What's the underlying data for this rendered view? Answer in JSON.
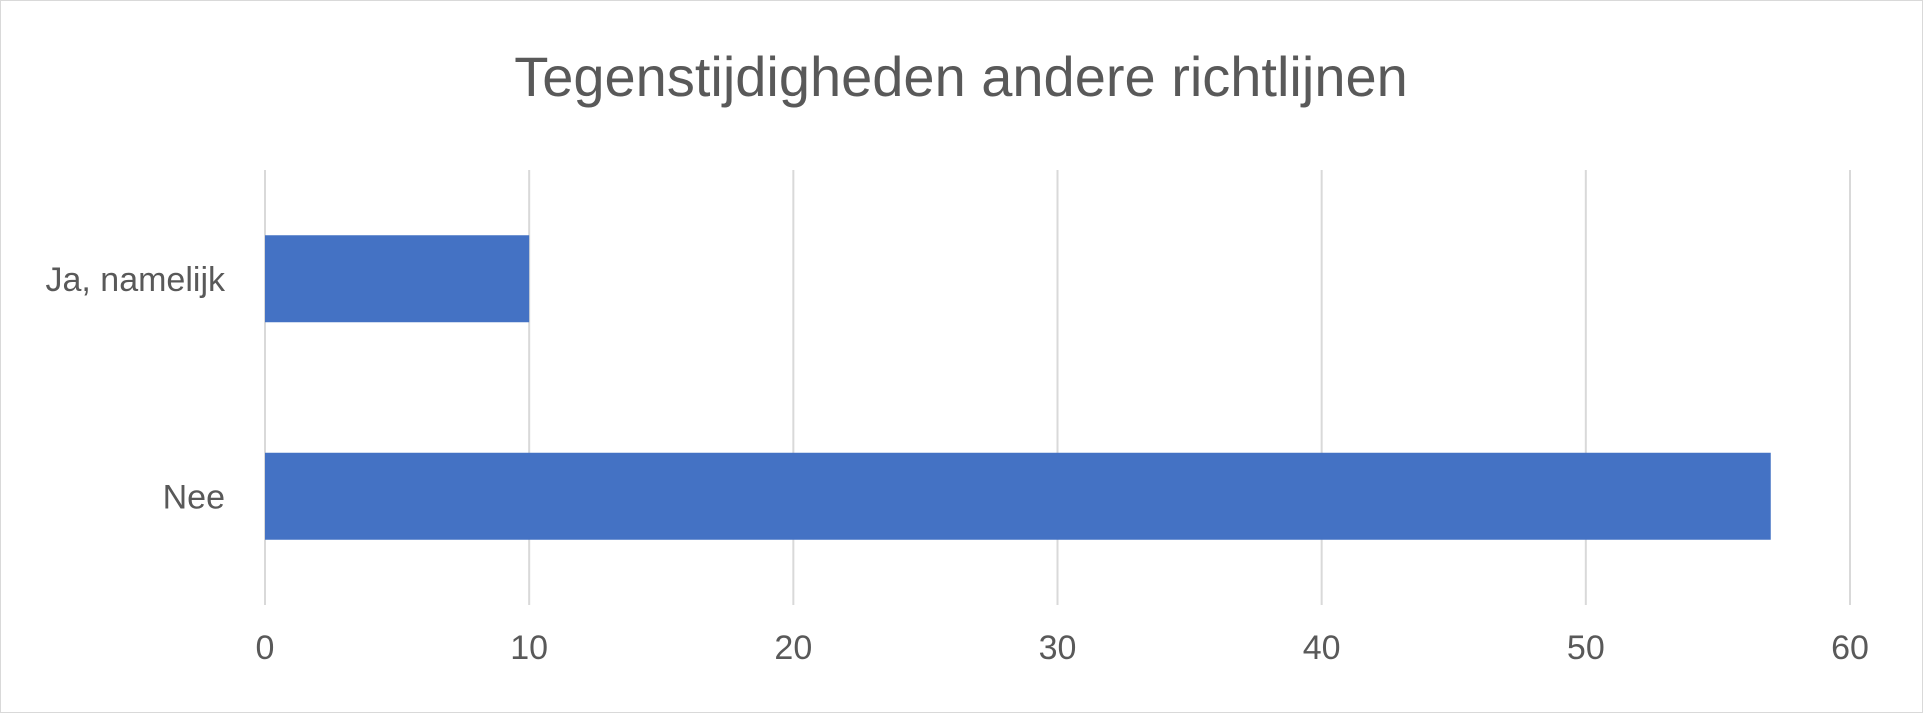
{
  "chart_data": {
    "type": "bar",
    "orientation": "horizontal",
    "title": "Tegenstijdigheden andere richtlijnen",
    "categories": [
      "Ja, namelijk",
      "Nee"
    ],
    "series": [
      {
        "values": [
          10,
          57
        ]
      }
    ],
    "xlim": [
      0,
      60
    ],
    "x_ticks": [
      "0",
      "10",
      "20",
      "30",
      "40",
      "50",
      "60"
    ],
    "grid": true,
    "legend": "none",
    "bar_color": "#4472c4"
  }
}
